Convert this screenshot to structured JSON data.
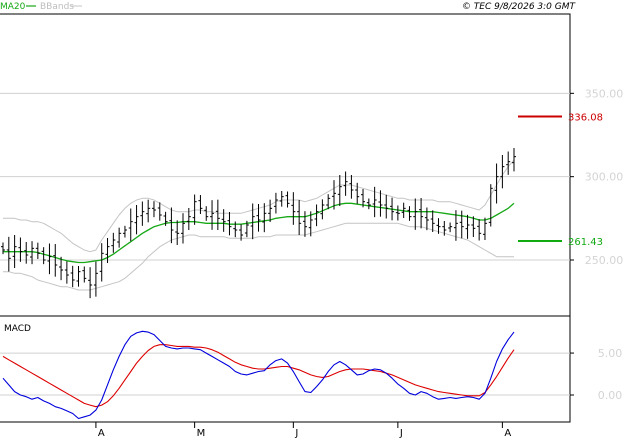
{
  "header": {
    "legend_ma": "MA20",
    "legend_bb": "BBands",
    "copyright": "© TEC 9/8/2026 3:0 GMT"
  },
  "colors": {
    "ma20": "#17a817",
    "bbands": "#c4c4c4",
    "bars": "#000000",
    "resistance": "#cc0000",
    "support": "#11aa11",
    "macd": "#0000dd",
    "signal": "#dd0000",
    "grid": "#d0d0d0",
    "frame": "#000000",
    "axis_text": "#d4d4d4"
  },
  "chart_data": [
    {
      "type": "ohlc",
      "panel": "price",
      "y_ticks": [
        "250.00",
        "300.00",
        "350.00"
      ],
      "y_tick_values": [
        250,
        300,
        350
      ],
      "ylim": [
        217,
        397
      ],
      "x_month_labels": [
        "A",
        "M",
        "J",
        "J",
        "A"
      ],
      "month_start_index": [
        16,
        33,
        50,
        68,
        86
      ],
      "series": [
        {
          "name": "price",
          "close": [
            256,
            251,
            258,
            255,
            253,
            257,
            254,
            250,
            252,
            247,
            244,
            241,
            238,
            243,
            239,
            235,
            242,
            254,
            258,
            262,
            266,
            268,
            273,
            276,
            279,
            281,
            280,
            277,
            273,
            268,
            266,
            272,
            276,
            285,
            281,
            276,
            278,
            275,
            273,
            270,
            268,
            265,
            271,
            276,
            274,
            278,
            281,
            286,
            288,
            284,
            279,
            272,
            270,
            274,
            279,
            283,
            287,
            290,
            294,
            297,
            292,
            288,
            285,
            283,
            286,
            283,
            281,
            279,
            278,
            281,
            276,
            279,
            276,
            274,
            272,
            270,
            268,
            270,
            272,
            270,
            271,
            269,
            266,
            272,
            293,
            300,
            306,
            309,
            312
          ]
        },
        {
          "name": "MA20",
          "values": [
            255,
            255,
            255,
            255,
            255,
            255,
            254.5,
            253.5,
            252.5,
            251.5,
            250.5,
            249.5,
            249,
            248.5,
            248.5,
            249,
            249.5,
            250,
            251.5,
            253.5,
            256,
            258.5,
            261,
            263.5,
            266,
            268,
            270,
            271,
            272,
            272.5,
            272.5,
            273,
            273,
            273,
            272.5,
            272,
            272,
            272,
            272,
            271.5,
            271.5,
            271.5,
            272,
            272.5,
            273,
            273.5,
            274,
            275,
            275.5,
            276,
            276,
            276,
            276,
            277,
            278,
            279.5,
            281,
            282.5,
            283.5,
            284,
            284,
            283.5,
            283,
            282.5,
            282,
            281.5,
            281,
            280.5,
            280,
            279.5,
            279,
            279,
            279,
            279,
            279,
            278.5,
            278,
            277.5,
            277,
            276.5,
            276,
            275,
            274,
            274,
            275,
            277,
            279,
            281,
            284
          ]
        },
        {
          "name": "BBands upper",
          "values": [
            275,
            275,
            275,
            274,
            274,
            273,
            273,
            272,
            270,
            268,
            266,
            263,
            260,
            258,
            256,
            255,
            256,
            262,
            267,
            272,
            277,
            281,
            284,
            286,
            287,
            287,
            286,
            284,
            282,
            280,
            279,
            279,
            279,
            280,
            280,
            279,
            279,
            278,
            278,
            278,
            278,
            278,
            279,
            280,
            281,
            282,
            283,
            285,
            286,
            286,
            286,
            286,
            285,
            286,
            287,
            289,
            291,
            293,
            295,
            295,
            295,
            294,
            293,
            292,
            291,
            290,
            289,
            288,
            287,
            287,
            286,
            286,
            286,
            286,
            286,
            285,
            285,
            285,
            284,
            283,
            282,
            281,
            280,
            283,
            289,
            295,
            301,
            306,
            310
          ]
        },
        {
          "name": "BBands lower",
          "values": [
            243,
            243,
            242,
            242,
            241,
            240,
            238,
            237,
            236,
            235,
            234,
            234,
            233,
            232,
            232,
            232,
            233,
            234,
            235,
            236,
            237,
            239,
            242,
            245,
            248,
            252,
            255,
            258,
            260,
            262,
            263,
            264,
            265,
            265,
            264,
            264,
            264,
            264,
            264,
            263,
            263,
            263,
            263,
            263,
            264,
            264,
            264,
            265,
            265,
            265,
            265,
            265,
            265,
            266,
            267,
            268,
            269,
            270,
            271,
            272,
            272,
            272,
            272,
            272,
            272,
            272,
            272,
            272,
            272,
            271,
            270,
            270,
            270,
            269,
            268,
            267,
            266,
            265,
            264,
            263,
            262,
            260,
            258,
            256,
            254,
            252,
            252,
            252,
            252
          ]
        }
      ],
      "levels": [
        {
          "name": "resistance",
          "value": 336.08,
          "label": "336.08"
        },
        {
          "name": "support",
          "value": 261.43,
          "label": "261.43"
        }
      ]
    },
    {
      "type": "line",
      "panel": "macd",
      "title": "MACD",
      "y_ticks": [
        "0.00",
        "5.00"
      ],
      "y_tick_values": [
        0,
        5
      ],
      "ylim": [
        -3.1,
        9.3
      ],
      "series": [
        {
          "name": "MACD",
          "values": [
            2.0,
            1.2,
            0.4,
            0.0,
            -0.2,
            -0.5,
            -0.3,
            -0.7,
            -1.0,
            -1.4,
            -1.6,
            -1.9,
            -2.2,
            -2.8,
            -2.6,
            -2.4,
            -1.8,
            -0.6,
            1.2,
            3.0,
            4.6,
            6.0,
            7.0,
            7.4,
            7.6,
            7.5,
            7.2,
            6.5,
            5.8,
            5.6,
            5.5,
            5.6,
            5.6,
            5.5,
            5.4,
            5.0,
            4.6,
            4.2,
            3.8,
            3.4,
            2.8,
            2.5,
            2.4,
            2.6,
            2.8,
            2.9,
            3.6,
            4.1,
            4.3,
            3.8,
            2.8,
            1.6,
            0.4,
            0.3,
            1.0,
            1.8,
            2.8,
            3.6,
            4.0,
            3.6,
            3.0,
            2.4,
            2.5,
            2.9,
            3.1,
            3.0,
            2.6,
            2.0,
            1.3,
            0.8,
            0.2,
            0.0,
            0.4,
            0.2,
            -0.2,
            -0.5,
            -0.4,
            -0.3,
            -0.4,
            -0.3,
            -0.2,
            -0.3,
            -0.5,
            0.2,
            2.0,
            4.0,
            5.5,
            6.6,
            7.5
          ]
        },
        {
          "name": "Signal",
          "values": [
            4.6,
            4.2,
            3.8,
            3.4,
            3.0,
            2.6,
            2.2,
            1.8,
            1.4,
            1.0,
            0.6,
            0.2,
            -0.2,
            -0.6,
            -1.0,
            -1.2,
            -1.4,
            -1.2,
            -0.8,
            -0.1,
            0.8,
            1.8,
            2.8,
            3.8,
            4.6,
            5.3,
            5.8,
            6.0,
            6.0,
            5.9,
            5.8,
            5.8,
            5.8,
            5.7,
            5.7,
            5.6,
            5.4,
            5.1,
            4.7,
            4.3,
            3.9,
            3.6,
            3.4,
            3.2,
            3.1,
            3.1,
            3.2,
            3.3,
            3.4,
            3.4,
            3.2,
            3.0,
            2.7,
            2.4,
            2.2,
            2.1,
            2.2,
            2.5,
            2.8,
            3.0,
            3.1,
            3.1,
            3.1,
            3.0,
            2.9,
            2.8,
            2.6,
            2.4,
            2.1,
            1.8,
            1.5,
            1.2,
            1.0,
            0.8,
            0.6,
            0.4,
            0.3,
            0.2,
            0.1,
            0.0,
            -0.1,
            -0.1,
            -0.1,
            0.3,
            1.2,
            2.2,
            3.3,
            4.4,
            5.4
          ]
        }
      ]
    }
  ]
}
